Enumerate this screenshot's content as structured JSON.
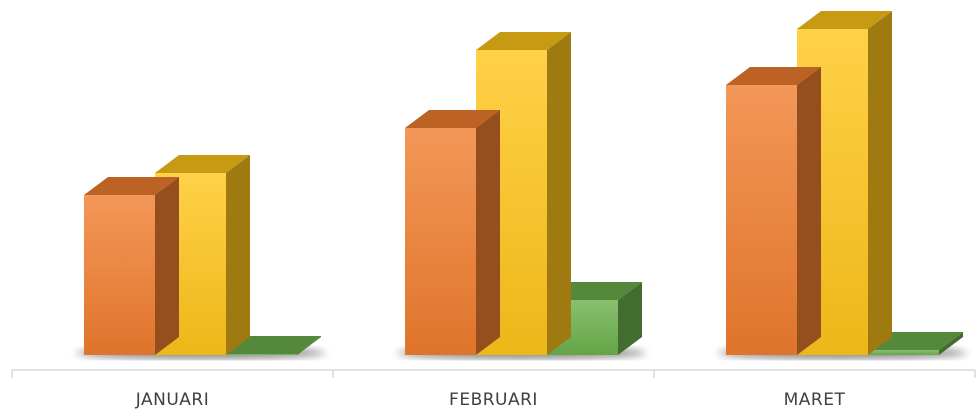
{
  "chart_data": {
    "type": "bar3d",
    "categories": [
      "JANUARI",
      "FEBRUARI",
      "MARET"
    ],
    "series": [
      {
        "color": "#f07d2e",
        "values": [
          160,
          227,
          270
        ]
      },
      {
        "color": "#ffc51a",
        "values": [
          182,
          305,
          326
        ]
      },
      {
        "color": "#6cb04c",
        "values": [
          1,
          55,
          5
        ]
      }
    ],
    "ylim": [
      0,
      330
    ]
  }
}
